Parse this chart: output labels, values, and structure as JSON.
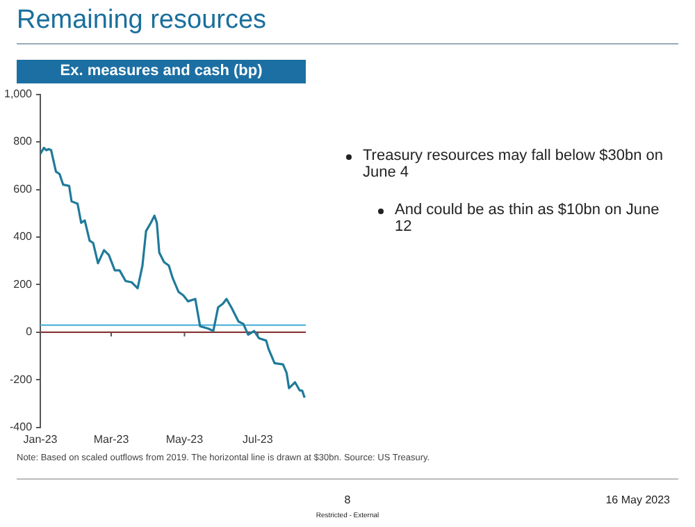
{
  "chart_data": {
    "type": "line",
    "title": "Remaining resources",
    "subtitle": "Ex. measures and cash (bp)",
    "x": [
      "2023-01-01",
      "2023-01-04",
      "2023-01-06",
      "2023-01-08",
      "2023-01-10",
      "2023-01-14",
      "2023-01-17",
      "2023-01-20",
      "2023-01-25",
      "2023-01-27",
      "2023-02-01",
      "2023-02-04",
      "2023-02-07",
      "2023-02-11",
      "2023-02-14",
      "2023-02-18",
      "2023-02-23",
      "2023-02-27",
      "2023-03-04",
      "2023-03-08",
      "2023-03-13",
      "2023-03-18",
      "2023-03-23",
      "2023-03-27",
      "2023-03-30",
      "2023-04-03",
      "2023-04-06",
      "2023-04-08",
      "2023-04-10",
      "2023-04-14",
      "2023-04-18",
      "2023-04-21",
      "2023-04-26",
      "2023-04-30",
      "2023-05-04",
      "2023-05-10",
      "2023-05-14",
      "2023-05-21",
      "2023-05-25",
      "2023-05-29",
      "2023-06-02",
      "2023-06-05",
      "2023-06-09",
      "2023-06-15",
      "2023-06-19",
      "2023-06-23",
      "2023-06-28",
      "2023-07-02",
      "2023-07-08",
      "2023-07-10",
      "2023-07-15",
      "2023-07-22",
      "2023-07-25",
      "2023-07-27",
      "2023-08-01",
      "2023-08-05",
      "2023-08-07",
      "2023-08-09"
    ],
    "series": [
      {
        "color": "#1f7a9a",
        "values": [
          750,
          775,
          765,
          770,
          765,
          675,
          665,
          620,
          615,
          550,
          540,
          460,
          470,
          385,
          375,
          290,
          345,
          325,
          260,
          260,
          215,
          210,
          185,
          280,
          425,
          460,
          490,
          460,
          335,
          295,
          280,
          230,
          170,
          155,
          130,
          140,
          25,
          15,
          5,
          105,
          120,
          140,
          105,
          45,
          35,
          -10,
          5,
          -25,
          -35,
          -70,
          -130,
          -135,
          -170,
          -235,
          -210,
          -245,
          -245,
          -275
        ]
      }
    ],
    "xlim": [
      "2023-01-01",
      "2023-08-10"
    ],
    "xticks": [
      {
        "value": "2023-01-01",
        "label": "Jan-23"
      },
      {
        "value": "2023-03-01",
        "label": "Mar-23"
      },
      {
        "value": "2023-05-01",
        "label": "May-23"
      },
      {
        "value": "2023-07-01",
        "label": "Jul-23"
      }
    ],
    "ylim": [
      -400,
      1000
    ],
    "yticks": [
      -400,
      -200,
      0,
      200,
      400,
      600,
      800,
      {
        "value": 1000,
        "label": "1,000"
      }
    ],
    "ref_lines": [
      {
        "axis": "y",
        "value": 0,
        "color": "#8b3a3a"
      },
      {
        "axis": "y",
        "value": 30,
        "color": "#4fb3d9"
      }
    ],
    "annotations": [
      "Treasury resources may fall below $30bn on June 4",
      "And could be as thin as $10bn on June 12",
      "Note: Based on scaled outflows from 2019. The horizontal line is drawn at $30bn. Source: US Treasury.",
      "8",
      "Restricted - External",
      "16 May 2023"
    ]
  }
}
